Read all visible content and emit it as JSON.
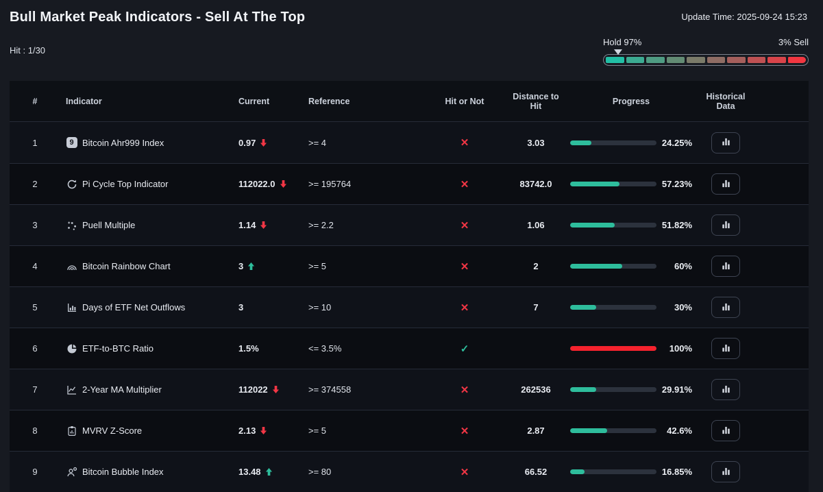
{
  "page": {
    "title": "Bull Market Peak Indicators - Sell At The Top",
    "update_time": "Update Time: 2025-09-24 15:23",
    "hit_label": "Hit : 1/30",
    "gauge": {
      "left_label": "Hold 97%",
      "right_label": "3% Sell",
      "marker_percent": 7,
      "segment_colors": [
        "#22bfa5",
        "#3cab92",
        "#4f9c83",
        "#638c74",
        "#7b7b69",
        "#8f6d64",
        "#a55f5c",
        "#bf5153",
        "#d9444a",
        "#f23741"
      ]
    }
  },
  "colors": {
    "teal": "#2ebd9c",
    "red": "#f23645",
    "bar_red": "#f5222d"
  },
  "table": {
    "headers": [
      "#",
      "Indicator",
      "Current",
      "Reference",
      "Hit or Not",
      "Distance to Hit",
      "Progress",
      "Historical Data"
    ],
    "rows": [
      {
        "num": "1",
        "icon": "ahr999-badge-icon",
        "indicator": "Bitcoin Ahr999 Index",
        "current": "0.97",
        "trend": "down",
        "reference": ">= 4",
        "hit": false,
        "distance": "3.03",
        "progress": 24.25,
        "progress_label": "24.25%",
        "bar": "teal"
      },
      {
        "num": "2",
        "icon": "pi-cycle-icon",
        "indicator": "Pi Cycle Top Indicator",
        "current": "112022.0",
        "trend": "down",
        "reference": ">= 195764",
        "hit": false,
        "distance": "83742.0",
        "progress": 57.23,
        "progress_label": "57.23%",
        "bar": "teal"
      },
      {
        "num": "3",
        "icon": "puell-scatter-icon",
        "indicator": "Puell Multiple",
        "current": "1.14",
        "trend": "down",
        "reference": ">= 2.2",
        "hit": false,
        "distance": "1.06",
        "progress": 51.82,
        "progress_label": "51.82%",
        "bar": "teal"
      },
      {
        "num": "4",
        "icon": "rainbow-icon",
        "indicator": "Bitcoin Rainbow Chart",
        "current": "3",
        "trend": "up",
        "reference": ">= 5",
        "hit": false,
        "distance": "2",
        "progress": 60,
        "progress_label": "60%",
        "bar": "teal"
      },
      {
        "num": "5",
        "icon": "etf-bars-icon",
        "indicator": "Days of ETF Net Outflows",
        "current": "3",
        "trend": "none",
        "reference": ">= 10",
        "hit": false,
        "distance": "7",
        "progress": 30,
        "progress_label": "30%",
        "bar": "teal"
      },
      {
        "num": "6",
        "icon": "pie-chart-icon",
        "indicator": "ETF-to-BTC Ratio",
        "current": "1.5%",
        "trend": "none",
        "reference": "<= 3.5%",
        "hit": true,
        "distance": "",
        "progress": 100,
        "progress_label": "100%",
        "bar": "red"
      },
      {
        "num": "7",
        "icon": "line-chart-icon",
        "indicator": "2-Year MA Multiplier",
        "current": "112022",
        "trend": "down",
        "reference": ">= 374558",
        "hit": false,
        "distance": "262536",
        "progress": 29.91,
        "progress_label": "29.91%",
        "bar": "teal"
      },
      {
        "num": "8",
        "icon": "clipboard-icon",
        "indicator": "MVRV Z-Score",
        "current": "2.13",
        "trend": "down",
        "reference": ">= 5",
        "hit": false,
        "distance": "2.87",
        "progress": 42.6,
        "progress_label": "42.6%",
        "bar": "teal"
      },
      {
        "num": "9",
        "icon": "bubble-person-icon",
        "indicator": "Bitcoin Bubble Index",
        "current": "13.48",
        "trend": "up",
        "reference": ">= 80",
        "hit": false,
        "distance": "66.52",
        "progress": 16.85,
        "progress_label": "16.85%",
        "bar": "teal"
      }
    ]
  }
}
